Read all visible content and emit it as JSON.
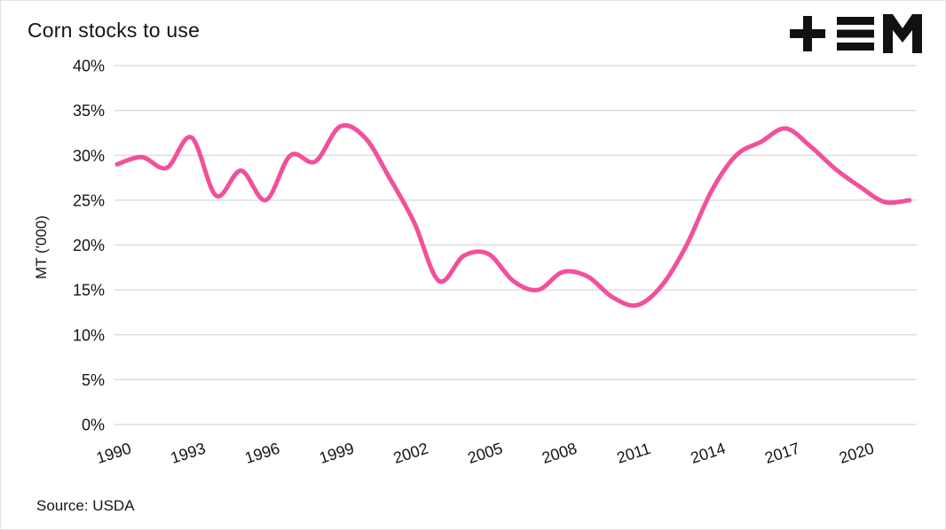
{
  "header": {
    "title": "Corn stocks to use"
  },
  "logo": {
    "glyphs": [
      "plus",
      "three-bars",
      "letter-m"
    ],
    "color": "#111111"
  },
  "footer": {
    "source": "Source: USDA"
  },
  "chart_data": {
    "type": "line",
    "title": "Corn stocks to use",
    "ylabel": "MT ('000)",
    "source": "Source: USDA",
    "x": [
      1990,
      1991,
      1992,
      1993,
      1994,
      1995,
      1996,
      1997,
      1998,
      1999,
      2000,
      2001,
      2002,
      2003,
      2004,
      2005,
      2006,
      2007,
      2008,
      2009,
      2010,
      2011,
      2012,
      2013,
      2014,
      2015,
      2016,
      2017,
      2018,
      2019,
      2020,
      2021,
      2022
    ],
    "values": [
      29.0,
      29.8,
      28.6,
      32.0,
      25.5,
      28.3,
      25.0,
      30.0,
      29.3,
      33.2,
      32.0,
      27.5,
      22.5,
      16.0,
      18.8,
      19.0,
      16.0,
      15.0,
      17.0,
      16.5,
      14.2,
      13.3,
      15.5,
      20.0,
      26.0,
      30.0,
      31.5,
      33.0,
      31.0,
      28.5,
      26.5,
      24.8,
      25.0
    ],
    "ylim": [
      0,
      40
    ],
    "yticks": [
      0,
      5,
      10,
      15,
      20,
      25,
      30,
      35,
      40
    ],
    "ytick_suffix": "%",
    "xticks": [
      1990,
      1993,
      1996,
      1999,
      2002,
      2005,
      2008,
      2011,
      2014,
      2017,
      2020
    ],
    "grid": true,
    "legend_position": "none",
    "line_color": "#f2509b",
    "grid_color": "#d9d9d9",
    "text_color": "#141414"
  }
}
